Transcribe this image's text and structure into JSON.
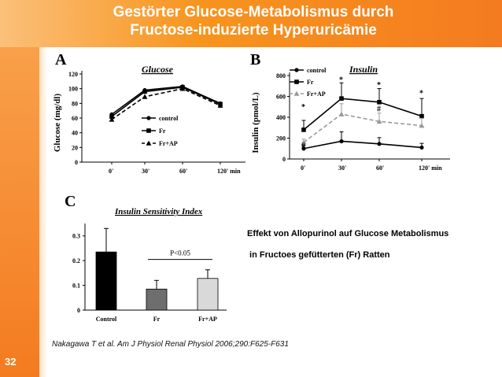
{
  "slide": {
    "title_line1": "Gestörter Glucose-Metabolismus durch",
    "title_line2": "Fructose-induzierte Hyperuricämie",
    "page_number": "32",
    "effect_line1": "Effekt von Allopurinol auf Glucose Metabolismus",
    "effect_line2": " in Fructoes gefütterten (Fr) Ratten",
    "citation": "Nakagawa T et al. Am J Physiol Renal Physiol 2006;290:F625-F631",
    "colors": {
      "orange": "#f47b20",
      "light_orange": "#fbc07a"
    }
  },
  "chart_data": [
    {
      "panel": "A",
      "type": "line",
      "title": "Glucose",
      "ylabel": "Glucose (mg/dl)",
      "x": [
        "0'",
        "30'",
        "60'",
        "120' min"
      ],
      "ylim": [
        0,
        120
      ],
      "yticks": [
        "0",
        "20",
        "40",
        "60",
        "80",
        "100",
        "120"
      ],
      "series": [
        {
          "name": "control",
          "values": [
            65,
            98,
            103,
            80
          ],
          "marker": "circle",
          "dash": "solid"
        },
        {
          "name": "Fr",
          "values": [
            62,
            96,
            102,
            79
          ],
          "marker": "square",
          "dash": "solid"
        },
        {
          "name": "Fr+AP",
          "values": [
            58,
            89,
            100,
            77
          ],
          "marker": "triangle",
          "dash": "dashed"
        }
      ],
      "legend_position": "right"
    },
    {
      "panel": "B",
      "type": "line",
      "title": "Insulin",
      "ylabel": "Insulin (pmol/L)",
      "x": [
        "0'",
        "30'",
        "60'",
        "120' min"
      ],
      "ylim": [
        0,
        800
      ],
      "yticks": [
        "0",
        "200",
        "400",
        "600",
        "800"
      ],
      "series": [
        {
          "name": "control",
          "values": [
            100,
            170,
            145,
            110
          ],
          "errors": [
            30,
            90,
            60,
            40
          ],
          "marker": "circle",
          "dash": "solid",
          "color": "#000000"
        },
        {
          "name": "Fr",
          "values": [
            280,
            580,
            545,
            410
          ],
          "errors": [
            90,
            150,
            130,
            170
          ],
          "marker": "square",
          "dash": "solid",
          "color": "#000000"
        },
        {
          "name": "Fr+AP",
          "values": [
            160,
            430,
            360,
            320
          ],
          "errors": [
            30,
            100,
            80,
            70
          ],
          "marker": "triangle",
          "dash": "dashed",
          "color": "#999999"
        }
      ],
      "annotations": [
        {
          "text": "*",
          "x": "0'",
          "y": 500
        },
        {
          "text": "*",
          "x": "30'",
          "y": 760
        },
        {
          "text": "*",
          "x": "60'",
          "y": 710
        },
        {
          "text": "*",
          "x": "120' min",
          "y": 630
        },
        {
          "text": "#",
          "x": "0'",
          "y": 130
        },
        {
          "text": "#",
          "x": "60'",
          "y": 480
        }
      ],
      "legend_position": "top-left"
    },
    {
      "panel": "C",
      "type": "bar",
      "title": "Insulin Sensitivity Index",
      "categories": [
        "Control",
        "Fr",
        "Fr+AP"
      ],
      "values": [
        0.235,
        0.085,
        0.128
      ],
      "errors": [
        0.095,
        0.035,
        0.035
      ],
      "bar_colors": [
        "#000000",
        "#6e6e6e",
        "#d9d9d9"
      ],
      "ylim": [
        0,
        0.35
      ],
      "yticks": [
        "0",
        "0.1",
        "0.2",
        "0.3"
      ],
      "annotation": "P<0.05"
    }
  ]
}
